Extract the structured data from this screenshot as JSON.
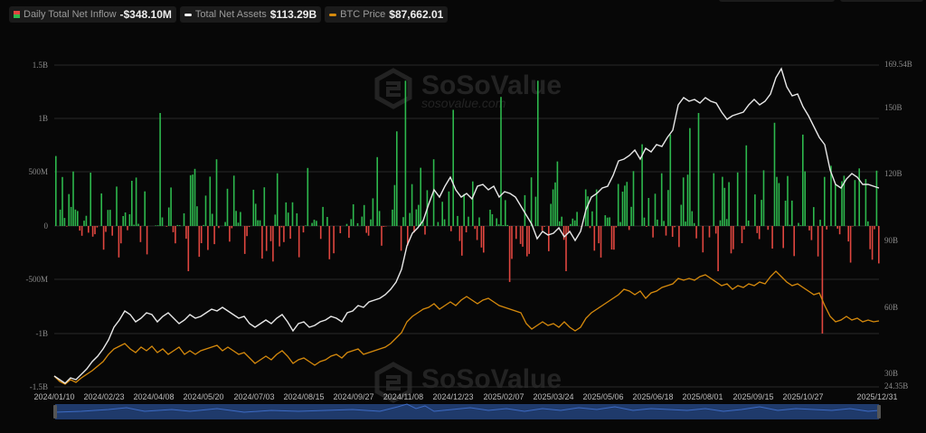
{
  "legend": {
    "inflow": {
      "label": "Daily Total Net Inflow",
      "value": "-$348.10M"
    },
    "assets": {
      "label": "Total Net Assets",
      "value": "$113.29B"
    },
    "btc": {
      "label": "BTC Price",
      "value": "$87,662.01"
    }
  },
  "watermark": {
    "brand": "SoSoValue",
    "url": "sosovalue.com"
  },
  "colors": {
    "positive": "#2db84d",
    "negative": "#e0463f",
    "assets_line": "#e8e8e8",
    "btc_line": "#d68a0c",
    "navigator": "#1f3a6b"
  },
  "chart_data": {
    "type": "bar+line",
    "title": "",
    "x_ticks": [
      "2024/01/10",
      "2024/02/23",
      "2024/04/08",
      "2024/05/20",
      "2024/07/03",
      "2024/08/15",
      "2024/09/27",
      "2024/11/08",
      "2024/12/23",
      "2025/02/07",
      "2025/03/24",
      "2025/05/06",
      "2025/06/18",
      "2025/08/01",
      "2025/09/15",
      "2025/10/27",
      "2025/12/31"
    ],
    "y_left": {
      "label": "Daily Total Net Inflow",
      "ticks": [
        "1.5B",
        "1B",
        "500M",
        "0",
        "-500M",
        "-1B",
        "-1.5B"
      ],
      "range": [
        -1500000000.0,
        1500000000.0
      ]
    },
    "y_right": {
      "label": "Total Net Assets",
      "ticks": [
        "169.54B",
        "150B",
        "120B",
        "90B",
        "60B",
        "30B",
        "24.35B"
      ],
      "range": [
        24.35,
        169.54
      ]
    },
    "series": [
      {
        "name": "Daily Total Net Inflow",
        "type": "bar",
        "unit": "USD",
        "sample_values_M": [
          650,
          -120,
          500,
          50,
          -180,
          -220,
          -90,
          300,
          420,
          -150,
          700,
          1050,
          560,
          -60,
          -420,
          -560,
          380,
          620,
          1000,
          140,
          -260,
          260,
          360,
          -330,
          560,
          220,
          780,
          -350,
          -120,
          350,
          180,
          -110,
          410,
          -90,
          640,
          -230,
          880,
          1350,
          1200,
          -80,
          620,
          -500,
          1080,
          780,
          640,
          -200,
          -760,
          1200,
          -520,
          900,
          -260,
          1350,
          -300,
          600,
          -420,
          -1150,
          340,
          880,
          -180,
          -220,
          250,
          620,
          760,
          -340,
          490,
          850,
          -150,
          910,
          1050,
          -550,
          -420,
          580,
          -300,
          750,
          860,
          -260,
          960,
          1200,
          -280,
          850,
          -560,
          -1000,
          560,
          800,
          -340,
          760,
          420,
          -320
        ],
        "last_value_M": -348.1
      },
      {
        "name": "Total Net Assets",
        "type": "line",
        "unit": "B USD",
        "x": [
          "2024/01/10",
          "2024/02/23",
          "2024/04/08",
          "2024/05/20",
          "2024/07/03",
          "2024/08/15",
          "2024/09/27",
          "2024/11/08",
          "2024/12/23",
          "2025/02/07",
          "2025/03/24",
          "2025/05/06",
          "2025/06/18",
          "2025/08/01",
          "2025/09/15",
          "2025/10/27",
          "2025/12/31"
        ],
        "values": [
          28,
          45,
          60,
          58,
          60,
          57,
          58,
          64,
          110,
          118,
          94,
          118,
          135,
          150,
          160,
          140,
          113.29
        ]
      },
      {
        "name": "BTC Price",
        "type": "line",
        "unit": "USD",
        "x": [
          "2024/01/10",
          "2024/02/23",
          "2024/04/08",
          "2024/05/20",
          "2024/07/03",
          "2024/08/15",
          "2024/09/27",
          "2024/11/08",
          "2024/12/23",
          "2025/02/07",
          "2025/03/24",
          "2025/05/06",
          "2025/06/18",
          "2025/08/01",
          "2025/09/15",
          "2025/10/27",
          "2025/12/31"
        ],
        "values": [
          46000,
          52000,
          69000,
          67000,
          60000,
          58000,
          64000,
          76000,
          95000,
          98000,
          87000,
          96000,
          104000,
          115000,
          115000,
          113000,
          87662.01
        ]
      }
    ],
    "legend_position": "top-left",
    "grid": true
  }
}
